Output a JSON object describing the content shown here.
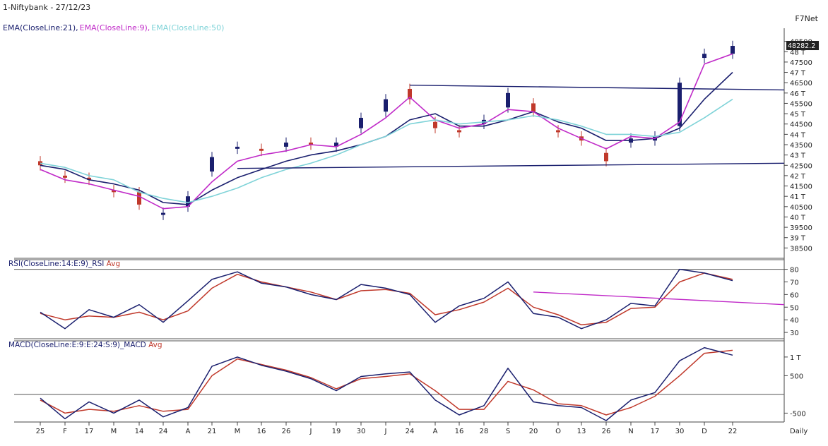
{
  "header": {
    "title": "1-Niftybank - 27/12/23",
    "brand": "F7Net",
    "ema_legend": [
      {
        "label": "EMA(CloseLine:21),",
        "color": "#1a1f6e"
      },
      {
        "label": "EMA(CloseLine:9),",
        "color": "#c02ac8"
      },
      {
        "label": "EMA(CloseLine:50)",
        "color": "#7fd3d8"
      }
    ]
  },
  "chart_data": [
    {
      "type": "candlestick",
      "title": "",
      "price_axis": {
        "ticks": [
          "48500",
          "48 T",
          "47500",
          "47 T",
          "46500",
          "46 T",
          "45500",
          "45 T",
          "44500",
          "44 T",
          "43500",
          "43 T",
          "42500",
          "42 T",
          "41500",
          "41 T",
          "40500",
          "40 T",
          "39500",
          "39 T",
          "38500"
        ],
        "ylim": [
          38000,
          49000
        ],
        "last_value_label": "48282.2"
      },
      "time_axis": {
        "labels": [
          "25",
          "F",
          "17",
          "M",
          "14",
          "24",
          "A",
          "21",
          "M",
          "16",
          "26",
          "J",
          "19",
          "30",
          "J",
          "24",
          "A",
          "16",
          "28",
          "S",
          "20",
          "O",
          "13",
          "26",
          "N",
          "17",
          "30",
          "D",
          "22"
        ],
        "period": "Daily"
      },
      "series": [
        {
          "name": "EMA(CloseLine:21)",
          "color": "#1a1f6e",
          "values": [
            42500,
            42300,
            41800,
            41600,
            41300,
            40700,
            40600,
            41300,
            41900,
            42300,
            42700,
            43000,
            43200,
            43500,
            43900,
            44700,
            45000,
            44400,
            44400,
            44700,
            45100,
            44600,
            44300,
            43700,
            43700,
            43800,
            44300,
            45700,
            47000
          ]
        },
        {
          "name": "EMA(CloseLine:9)",
          "color": "#c02ac8",
          "values": [
            42300,
            41800,
            41600,
            41300,
            41000,
            40400,
            40500,
            41700,
            42700,
            43000,
            43200,
            43500,
            43400,
            44000,
            44800,
            45800,
            44700,
            44300,
            44500,
            45200,
            45100,
            44300,
            43800,
            43300,
            43900,
            43800,
            44600,
            47400,
            47900
          ]
        },
        {
          "name": "EMA(CloseLine:50)",
          "color": "#7fd3d8",
          "values": [
            42600,
            42400,
            42000,
            41800,
            41200,
            40900,
            40700,
            41000,
            41400,
            41900,
            42300,
            42600,
            43000,
            43500,
            43900,
            44500,
            44700,
            44500,
            44600,
            44700,
            44900,
            44700,
            44400,
            44000,
            44000,
            43900,
            44100,
            44800,
            45700
          ]
        }
      ],
      "candles": {
        "open": [
          42700,
          42000,
          41900,
          41300,
          41200,
          40100,
          40500,
          42200,
          43300,
          43300,
          43400,
          43600,
          43400,
          44300,
          45100,
          46200,
          44600,
          44200,
          44500,
          45300,
          45500,
          44200,
          43900,
          43100,
          43600,
          43700,
          44400,
          47700,
          47900
        ],
        "close": [
          42500,
          41900,
          41800,
          41200,
          40600,
          40200,
          41000,
          42900,
          43400,
          43200,
          43600,
          43500,
          43600,
          44800,
          45700,
          45700,
          44300,
          44100,
          44700,
          46000,
          45100,
          44100,
          43700,
          42700,
          43800,
          43900,
          46500,
          47900,
          48282
        ]
      },
      "trendlines": [
        {
          "name": "resistance",
          "color": "#1a1f6e",
          "from": [
            "24",
            46380
          ],
          "to": [
            "22",
            46150
          ]
        },
        {
          "name": "support",
          "color": "#1a1f6e",
          "from": [
            "M",
            42350
          ],
          "to": [
            "22",
            42600
          ]
        }
      ]
    },
    {
      "type": "line",
      "title": "RSI(CloseLine:14:E:9)_RSI Avg",
      "legend_parts": [
        {
          "label": "RSI(CloseLine:14:E:9)_RSI",
          "color": "#1a1f6e"
        },
        {
          "label": "Avg",
          "color": "#c0392b"
        }
      ],
      "y_ticks": [
        "80",
        "70",
        "60",
        "50",
        "40",
        "30"
      ],
      "ylim": [
        25,
        82
      ],
      "reference_lines": [
        80
      ],
      "series": [
        {
          "name": "RSI(CloseLine:14:E:9)_RSI",
          "color": "#1a1f6e",
          "values": [
            46,
            33,
            48,
            42,
            52,
            38,
            55,
            72,
            78,
            69,
            66,
            60,
            56,
            68,
            65,
            60,
            38,
            51,
            57,
            70,
            45,
            42,
            33,
            40,
            53,
            51,
            80,
            77,
            71
          ]
        },
        {
          "name": "Avg",
          "color": "#c0392b",
          "values": [
            45,
            40,
            43,
            42,
            46,
            40,
            47,
            65,
            76,
            70,
            66,
            62,
            56,
            63,
            64,
            61,
            44,
            48,
            54,
            65,
            50,
            44,
            36,
            38,
            49,
            50,
            70,
            77,
            72
          ]
        }
      ],
      "trendlines": [
        {
          "name": "rsi-trend",
          "color": "#c02ac8",
          "from": [
            "20",
            62
          ],
          "to": [
            "22",
            52
          ]
        }
      ]
    },
    {
      "type": "line",
      "title": "MACD(CloseLine:E:9:E:24:S:9)_MACD Avg",
      "legend_parts": [
        {
          "label": "MACD(CloseLine:E:9:E:24:S:9)_MACD",
          "color": "#1a1f6e"
        },
        {
          "label": "Avg",
          "color": "#c0392b"
        }
      ],
      "y_ticks": [
        "1 T",
        "500",
        "-500"
      ],
      "ylim": [
        -700,
        1300
      ],
      "reference_lines": [
        0
      ],
      "series": [
        {
          "name": "MACD(CloseLine:E:9:E:24:S:9)_MACD",
          "color": "#1a1f6e",
          "values": [
            -100,
            -650,
            -200,
            -500,
            -150,
            -600,
            -350,
            750,
            1000,
            780,
            620,
            420,
            100,
            480,
            550,
            600,
            -150,
            -550,
            -300,
            700,
            -200,
            -300,
            -350,
            -700,
            -150,
            50,
            900,
            1250,
            1050
          ]
        },
        {
          "name": "Avg",
          "color": "#c0392b",
          "values": [
            -150,
            -500,
            -400,
            -450,
            -300,
            -450,
            -400,
            500,
            950,
            800,
            650,
            450,
            150,
            420,
            480,
            550,
            100,
            -400,
            -400,
            350,
            120,
            -250,
            -300,
            -550,
            -350,
            -50,
            500,
            1100,
            1180
          ]
        }
      ]
    }
  ]
}
